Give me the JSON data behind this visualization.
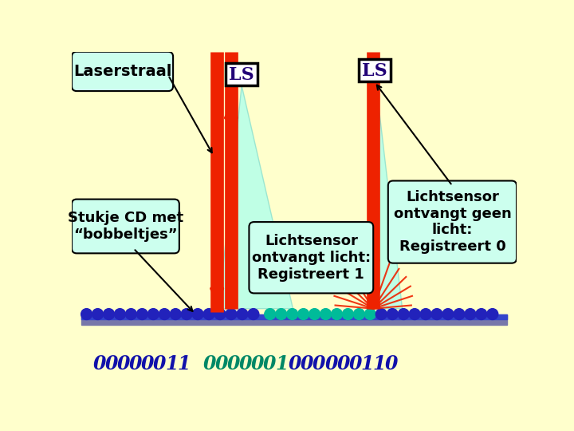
{
  "bg_color": "#FFFFCC",
  "cd_bump_color_blue": "#2222BB",
  "cd_bump_color_teal": "#00BB99",
  "cd_base_color": "#7777AA",
  "laser_color": "#EE2200",
  "callout_bg": "#CCFFEE",
  "ls_box_bg": "#EEFFEE",
  "text_color_dark": "#000000",
  "text_color_blue": "#1111AA",
  "text_color_teal": "#008866",
  "label_laserstraal": "Laserstraal",
  "label_stukje": "Stukje CD met\n“bobbeltjes”",
  "label_lichtsensor1": "Lichtsensor\nontvangt licht:\nRegistreert 1",
  "label_lichtsensor0": "Lichtsensor\nontvangt geen\nlicht:\nRegistreert 0",
  "label_ls": "LS",
  "bits_line": "0 0 0 0 0 0 1 1   0 0 0 0 0 0 1 0 0 0 0 0 0 1 1 0"
}
